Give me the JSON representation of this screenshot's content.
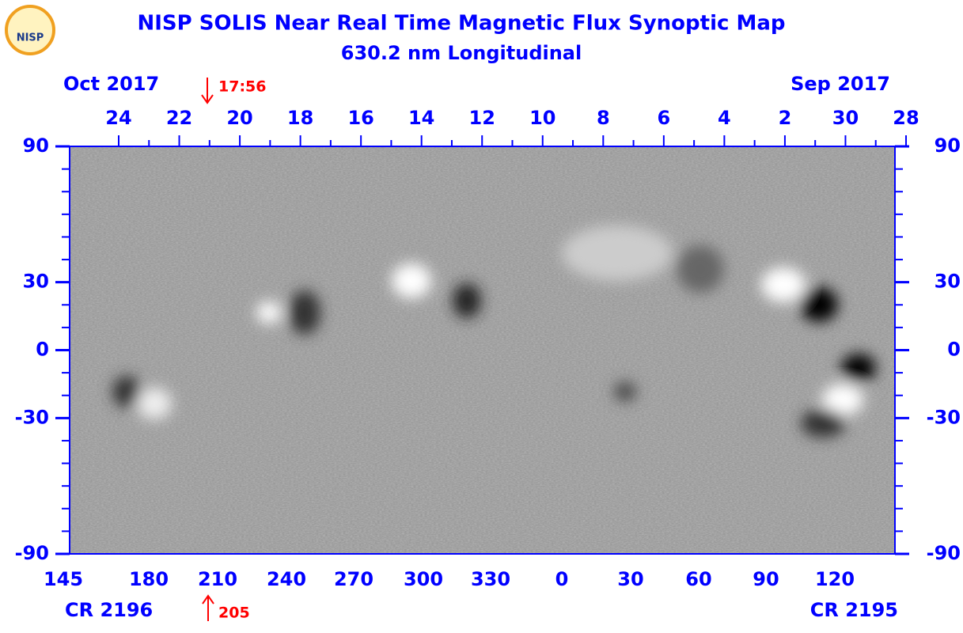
{
  "header": {
    "title": "NISP SOLIS Near Real Time Magnetic Flux Synoptic Map",
    "subtitle": "630.2 nm Longitudinal",
    "logo": "NISP"
  },
  "top_axis": {
    "left_label": "Oct 2017",
    "right_label": "Sep 2017",
    "marker": "17:56",
    "ticks": [
      24,
      22,
      20,
      18,
      16,
      14,
      12,
      10,
      8,
      6,
      4,
      2,
      30,
      28
    ]
  },
  "bottom_axis": {
    "left_label": "CR 2196",
    "right_label": "CR 2195",
    "marker": "205",
    "ticks": [
      145,
      180,
      210,
      240,
      270,
      300,
      330,
      0,
      30,
      60,
      90,
      120
    ]
  },
  "latitude": {
    "ticks": [
      90,
      30,
      0,
      -30,
      -90
    ]
  }
}
